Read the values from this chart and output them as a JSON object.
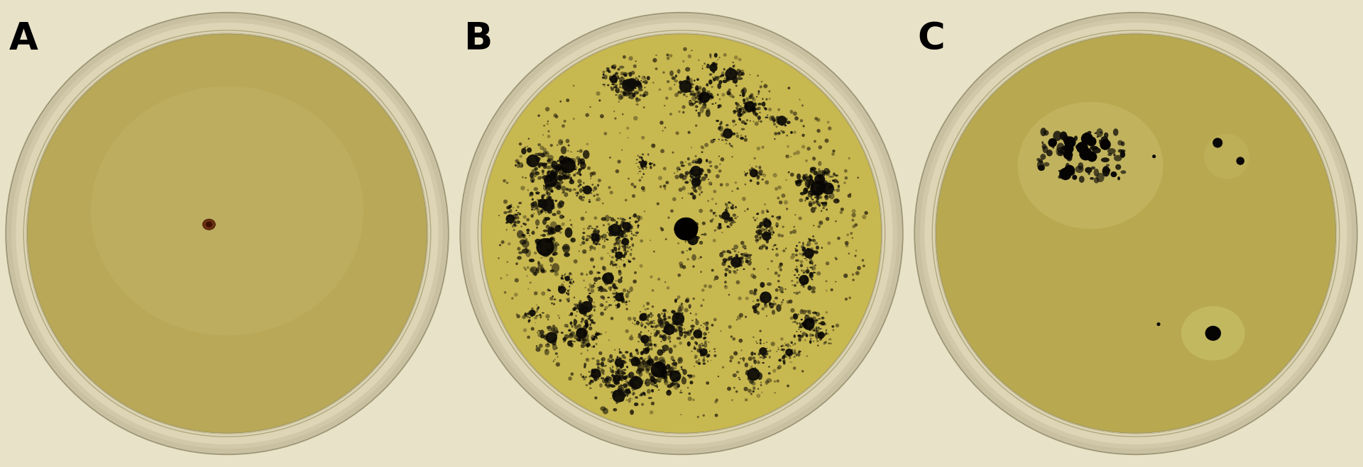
{
  "background_color": "#e8e2c8",
  "fig_width": 19.2,
  "fig_height": 6.59,
  "panels": [
    "A",
    "B",
    "C"
  ],
  "label_fontsize": 38,
  "label_color": "#000000",
  "label_font_weight": "bold",
  "agar_color_A": "#b8a858",
  "agar_color_B": "#c8b850",
  "agar_color_C": "#b8a850",
  "rim_color": "#d0c8a0",
  "rim_edge_color": "#c0b890",
  "colony_dark": "#080604",
  "colony_brown": "#5a2808",
  "halo_color": "#d0c870"
}
